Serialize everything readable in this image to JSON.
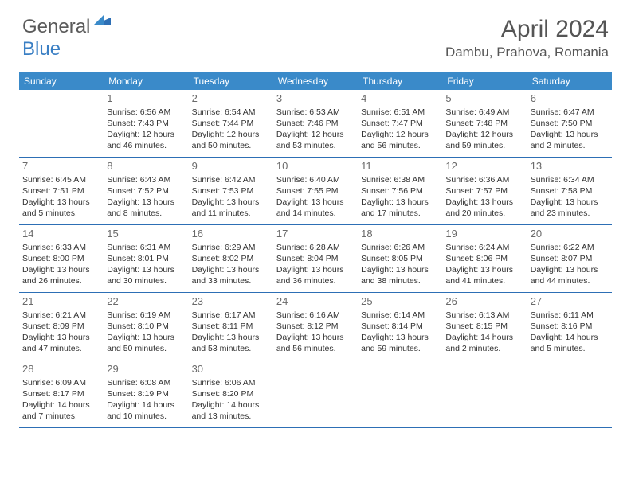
{
  "logo": {
    "general": "General",
    "blue": "Blue"
  },
  "title": "April 2024",
  "location": "Dambu, Prahova, Romania",
  "colors": {
    "header_bg": "#3a8ac9",
    "border": "#2d6fb5",
    "logo_blue": "#3a7fc4",
    "text_gray": "#555555"
  },
  "weekdays": [
    "Sunday",
    "Monday",
    "Tuesday",
    "Wednesday",
    "Thursday",
    "Friday",
    "Saturday"
  ],
  "weeks": [
    [
      {
        "n": "",
        "empty": true
      },
      {
        "n": "1",
        "sr": "Sunrise: 6:56 AM",
        "ss": "Sunset: 7:43 PM",
        "d1": "Daylight: 12 hours",
        "d2": "and 46 minutes."
      },
      {
        "n": "2",
        "sr": "Sunrise: 6:54 AM",
        "ss": "Sunset: 7:44 PM",
        "d1": "Daylight: 12 hours",
        "d2": "and 50 minutes."
      },
      {
        "n": "3",
        "sr": "Sunrise: 6:53 AM",
        "ss": "Sunset: 7:46 PM",
        "d1": "Daylight: 12 hours",
        "d2": "and 53 minutes."
      },
      {
        "n": "4",
        "sr": "Sunrise: 6:51 AM",
        "ss": "Sunset: 7:47 PM",
        "d1": "Daylight: 12 hours",
        "d2": "and 56 minutes."
      },
      {
        "n": "5",
        "sr": "Sunrise: 6:49 AM",
        "ss": "Sunset: 7:48 PM",
        "d1": "Daylight: 12 hours",
        "d2": "and 59 minutes."
      },
      {
        "n": "6",
        "sr": "Sunrise: 6:47 AM",
        "ss": "Sunset: 7:50 PM",
        "d1": "Daylight: 13 hours",
        "d2": "and 2 minutes."
      }
    ],
    [
      {
        "n": "7",
        "sr": "Sunrise: 6:45 AM",
        "ss": "Sunset: 7:51 PM",
        "d1": "Daylight: 13 hours",
        "d2": "and 5 minutes."
      },
      {
        "n": "8",
        "sr": "Sunrise: 6:43 AM",
        "ss": "Sunset: 7:52 PM",
        "d1": "Daylight: 13 hours",
        "d2": "and 8 minutes."
      },
      {
        "n": "9",
        "sr": "Sunrise: 6:42 AM",
        "ss": "Sunset: 7:53 PM",
        "d1": "Daylight: 13 hours",
        "d2": "and 11 minutes."
      },
      {
        "n": "10",
        "sr": "Sunrise: 6:40 AM",
        "ss": "Sunset: 7:55 PM",
        "d1": "Daylight: 13 hours",
        "d2": "and 14 minutes."
      },
      {
        "n": "11",
        "sr": "Sunrise: 6:38 AM",
        "ss": "Sunset: 7:56 PM",
        "d1": "Daylight: 13 hours",
        "d2": "and 17 minutes."
      },
      {
        "n": "12",
        "sr": "Sunrise: 6:36 AM",
        "ss": "Sunset: 7:57 PM",
        "d1": "Daylight: 13 hours",
        "d2": "and 20 minutes."
      },
      {
        "n": "13",
        "sr": "Sunrise: 6:34 AM",
        "ss": "Sunset: 7:58 PM",
        "d1": "Daylight: 13 hours",
        "d2": "and 23 minutes."
      }
    ],
    [
      {
        "n": "14",
        "sr": "Sunrise: 6:33 AM",
        "ss": "Sunset: 8:00 PM",
        "d1": "Daylight: 13 hours",
        "d2": "and 26 minutes."
      },
      {
        "n": "15",
        "sr": "Sunrise: 6:31 AM",
        "ss": "Sunset: 8:01 PM",
        "d1": "Daylight: 13 hours",
        "d2": "and 30 minutes."
      },
      {
        "n": "16",
        "sr": "Sunrise: 6:29 AM",
        "ss": "Sunset: 8:02 PM",
        "d1": "Daylight: 13 hours",
        "d2": "and 33 minutes."
      },
      {
        "n": "17",
        "sr": "Sunrise: 6:28 AM",
        "ss": "Sunset: 8:04 PM",
        "d1": "Daylight: 13 hours",
        "d2": "and 36 minutes."
      },
      {
        "n": "18",
        "sr": "Sunrise: 6:26 AM",
        "ss": "Sunset: 8:05 PM",
        "d1": "Daylight: 13 hours",
        "d2": "and 38 minutes."
      },
      {
        "n": "19",
        "sr": "Sunrise: 6:24 AM",
        "ss": "Sunset: 8:06 PM",
        "d1": "Daylight: 13 hours",
        "d2": "and 41 minutes."
      },
      {
        "n": "20",
        "sr": "Sunrise: 6:22 AM",
        "ss": "Sunset: 8:07 PM",
        "d1": "Daylight: 13 hours",
        "d2": "and 44 minutes."
      }
    ],
    [
      {
        "n": "21",
        "sr": "Sunrise: 6:21 AM",
        "ss": "Sunset: 8:09 PM",
        "d1": "Daylight: 13 hours",
        "d2": "and 47 minutes."
      },
      {
        "n": "22",
        "sr": "Sunrise: 6:19 AM",
        "ss": "Sunset: 8:10 PM",
        "d1": "Daylight: 13 hours",
        "d2": "and 50 minutes."
      },
      {
        "n": "23",
        "sr": "Sunrise: 6:17 AM",
        "ss": "Sunset: 8:11 PM",
        "d1": "Daylight: 13 hours",
        "d2": "and 53 minutes."
      },
      {
        "n": "24",
        "sr": "Sunrise: 6:16 AM",
        "ss": "Sunset: 8:12 PM",
        "d1": "Daylight: 13 hours",
        "d2": "and 56 minutes."
      },
      {
        "n": "25",
        "sr": "Sunrise: 6:14 AM",
        "ss": "Sunset: 8:14 PM",
        "d1": "Daylight: 13 hours",
        "d2": "and 59 minutes."
      },
      {
        "n": "26",
        "sr": "Sunrise: 6:13 AM",
        "ss": "Sunset: 8:15 PM",
        "d1": "Daylight: 14 hours",
        "d2": "and 2 minutes."
      },
      {
        "n": "27",
        "sr": "Sunrise: 6:11 AM",
        "ss": "Sunset: 8:16 PM",
        "d1": "Daylight: 14 hours",
        "d2": "and 5 minutes."
      }
    ],
    [
      {
        "n": "28",
        "sr": "Sunrise: 6:09 AM",
        "ss": "Sunset: 8:17 PM",
        "d1": "Daylight: 14 hours",
        "d2": "and 7 minutes."
      },
      {
        "n": "29",
        "sr": "Sunrise: 6:08 AM",
        "ss": "Sunset: 8:19 PM",
        "d1": "Daylight: 14 hours",
        "d2": "and 10 minutes."
      },
      {
        "n": "30",
        "sr": "Sunrise: 6:06 AM",
        "ss": "Sunset: 8:20 PM",
        "d1": "Daylight: 14 hours",
        "d2": "and 13 minutes."
      },
      {
        "n": "",
        "empty": true
      },
      {
        "n": "",
        "empty": true
      },
      {
        "n": "",
        "empty": true
      },
      {
        "n": "",
        "empty": true
      }
    ]
  ]
}
